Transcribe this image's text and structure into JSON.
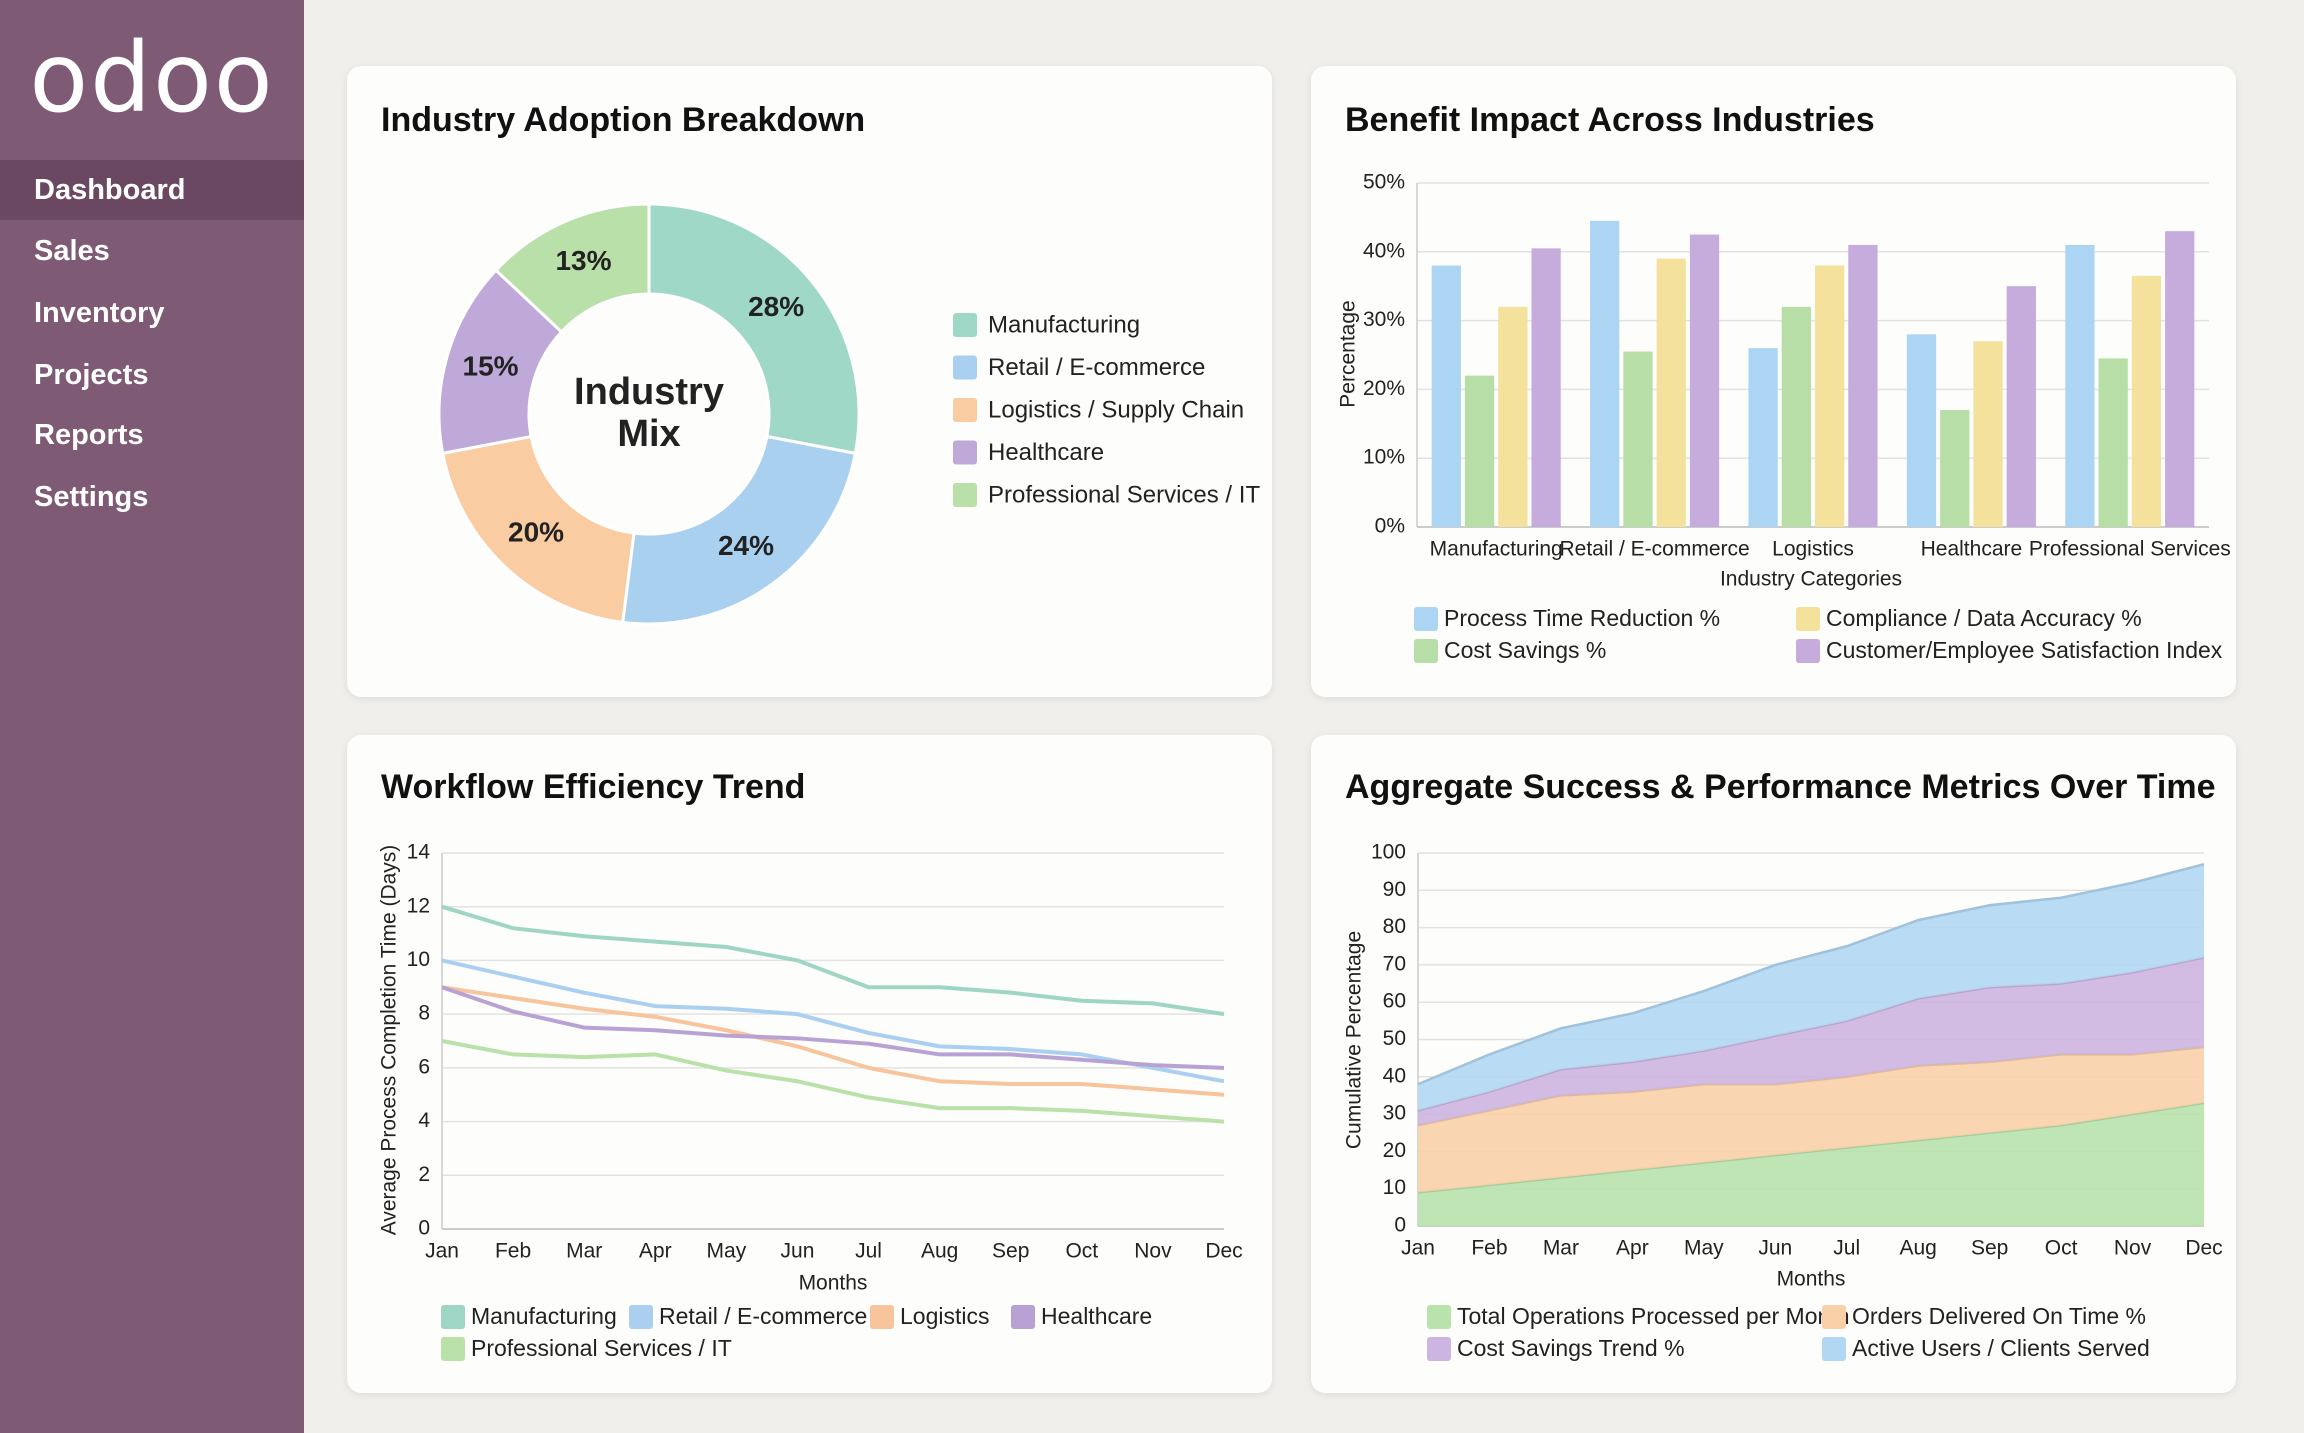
{
  "sidebar": {
    "logo": "odoo",
    "nav": [
      "Dashboard",
      "Sales",
      "Inventory",
      "Projects",
      "Reports",
      "Settings"
    ]
  },
  "chart_data": [
    {
      "type": "donut",
      "title": "Industry Adoption Breakdown",
      "center_label": [
        "Industry",
        "Mix"
      ],
      "categories": [
        "Manufacturing",
        "Retail / E-commerce",
        "Logistics / Supply Chain",
        "Healthcare",
        "Professional Services / IT"
      ],
      "values": [
        28,
        24,
        20,
        15,
        13
      ],
      "value_labels": [
        "28%",
        "24%",
        "20%",
        "15%",
        "13%"
      ],
      "colors": [
        "#9fd8c7",
        "#aad0f0",
        "#f9cca2",
        "#bea9d8",
        "#b9e0a9"
      ]
    },
    {
      "type": "bar",
      "title": "Benefit Impact Across Industries",
      "x_label": "Industry Categories",
      "y_label": "Percentage",
      "categories": [
        "Manufacturing",
        "Retail / E-commerce",
        "Logistics",
        "Healthcare",
        "Professional Services"
      ],
      "series": [
        {
          "name": "Process Time Reduction %",
          "color": "#abd5f3",
          "values": [
            38,
            44.5,
            26,
            28,
            41
          ]
        },
        {
          "name": "Cost Savings %",
          "color": "#b6dea6",
          "values": [
            22,
            25.5,
            32,
            17,
            24.5
          ]
        },
        {
          "name": "Compliance / Data Accuracy %",
          "color": "#f4e29c",
          "values": [
            32,
            39,
            38,
            27,
            36.5
          ]
        },
        {
          "name": "Customer/Employee Satisfaction Index",
          "color": "#c5acdc",
          "values": [
            40.5,
            42.5,
            41,
            35,
            43
          ]
        }
      ],
      "ylim": [
        0,
        50
      ],
      "yticks": [
        {
          "value": 0,
          "label": "0%"
        },
        {
          "value": 10,
          "label": "10%"
        },
        {
          "value": 20,
          "label": "20%"
        },
        {
          "value": 30,
          "label": "30%"
        },
        {
          "value": 40,
          "label": "40%"
        },
        {
          "value": 50,
          "label": "50%"
        }
      ],
      "grid": true
    },
    {
      "type": "line",
      "title": "Workflow Efficiency Trend",
      "x_label": "Months",
      "y_label": "Average Process Completion Time (Days)",
      "categories": [
        "Jan",
        "Feb",
        "Mar",
        "Apr",
        "May",
        "Jun",
        "Jul",
        "Aug",
        "Sep",
        "Oct",
        "Nov",
        "Dec"
      ],
      "series": [
        {
          "name": "Manufacturing",
          "color": "#9fd5c5",
          "values": [
            12,
            11.2,
            10.9,
            10.7,
            10.5,
            10,
            9,
            9,
            8.8,
            8.5,
            8.4,
            8
          ]
        },
        {
          "name": "Retail / E-commerce",
          "color": "#abcff0",
          "values": [
            10,
            9.4,
            8.8,
            8.3,
            8.2,
            8,
            7.3,
            6.8,
            6.7,
            6.5,
            6,
            5.5
          ]
        },
        {
          "name": "Logistics",
          "color": "#f7c49c",
          "values": [
            9,
            8.6,
            8.2,
            7.9,
            7.4,
            6.8,
            6,
            5.5,
            5.4,
            5.4,
            5.2,
            5
          ]
        },
        {
          "name": "Healthcare",
          "color": "#b8a2d4",
          "values": [
            9,
            8.1,
            7.5,
            7.4,
            7.2,
            7.1,
            6.9,
            6.5,
            6.5,
            6.3,
            6.1,
            6
          ]
        },
        {
          "name": "Professional Services / IT",
          "color": "#bae1a9",
          "values": [
            7,
            6.5,
            6.4,
            6.5,
            5.9,
            5.5,
            4.9,
            4.5,
            4.5,
            4.4,
            4.2,
            4
          ]
        }
      ],
      "ylim": [
        0,
        14
      ],
      "yticks": [
        0,
        2,
        4,
        6,
        8,
        10,
        12,
        14
      ],
      "grid": true
    },
    {
      "type": "stacked_area",
      "title": "Aggregate Success & Performance Metrics Over Time",
      "x_label": "Months",
      "y_label": "Cumulative Percentage",
      "categories": [
        "Jan",
        "Feb",
        "Mar",
        "Apr",
        "May",
        "Jun",
        "Jul",
        "Aug",
        "Sep",
        "Oct",
        "Nov",
        "Dec"
      ],
      "series": [
        {
          "name": "Total Operations Processed per Month",
          "color": "#b9e2ad",
          "values": [
            9,
            11,
            13,
            15,
            17,
            19,
            21,
            23,
            25,
            27,
            30,
            33
          ]
        },
        {
          "name": "Orders Delivered On Time %",
          "color": "#f9d0a8",
          "values": [
            18,
            20,
            22,
            21,
            21,
            19,
            19,
            20,
            19,
            19,
            16,
            15
          ]
        },
        {
          "name": "Cost Savings Trend %",
          "color": "#cdb5e1",
          "values": [
            4,
            5,
            7,
            8,
            9,
            13,
            15,
            18,
            20,
            19,
            22,
            24
          ]
        },
        {
          "name": "Active Users / Clients Served",
          "color": "#b2d7f3",
          "values": [
            7,
            10,
            11,
            13,
            16,
            19,
            20,
            21,
            22,
            23,
            24,
            25
          ]
        }
      ],
      "ylim": [
        0,
        100
      ],
      "yticks": [
        0,
        10,
        20,
        30,
        40,
        50,
        60,
        70,
        80,
        90,
        100
      ],
      "grid": true
    }
  ]
}
